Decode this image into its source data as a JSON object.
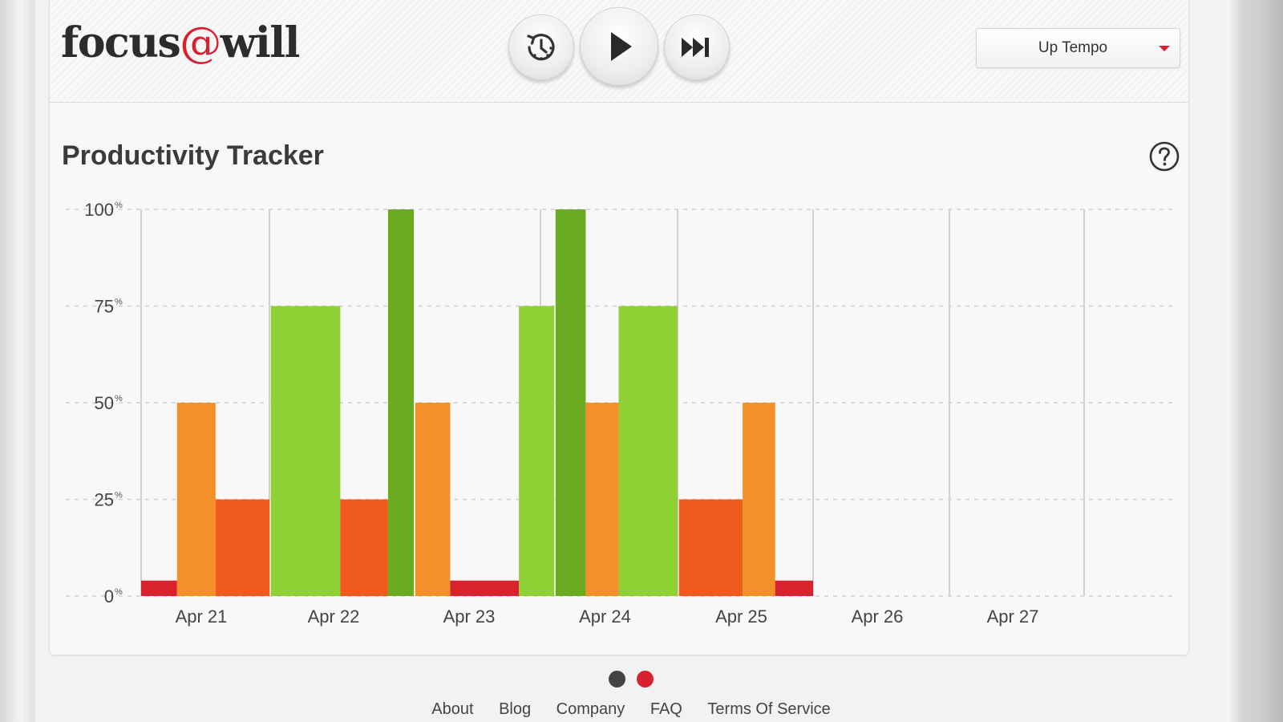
{
  "header": {
    "logo": {
      "left": "focus",
      "at": "@",
      "right": "will"
    },
    "controls": [
      {
        "name": "timer-button",
        "icon": "timer-icon"
      },
      {
        "name": "play-button",
        "icon": "play-icon"
      },
      {
        "name": "skip-button",
        "icon": "skip-forward-icon"
      }
    ],
    "channel_select": {
      "value": "Up Tempo",
      "icon": "caret-down-icon"
    }
  },
  "tracker": {
    "title": "Productivity Tracker",
    "help_icon": "help-circle-icon"
  },
  "chart_data": {
    "type": "bar",
    "title": "",
    "xlabel": "",
    "ylabel": "",
    "ylim": [
      0,
      100
    ],
    "y_ticks": [
      {
        "value": 100,
        "label": "100",
        "unit": "%"
      },
      {
        "value": 75,
        "label": "75",
        "unit": "%"
      },
      {
        "value": 50,
        "label": "50",
        "unit": "%"
      },
      {
        "value": 25,
        "label": "25",
        "unit": "%"
      },
      {
        "value": 0,
        "label": "0",
        "unit": "%"
      }
    ],
    "categories": [
      "Apr 21",
      "Apr 22",
      "Apr 23",
      "Apr 24",
      "Apr 25",
      "Apr 26",
      "Apr 27"
    ],
    "grid": true,
    "colors": {
      "very-low": "#d8232e",
      "low": "#f05a1c",
      "medium": "#f39028",
      "high": "#8fd035",
      "very-high": "#6aab21"
    },
    "sessions": [
      {
        "start": 0.0,
        "end": 0.28,
        "value": 4,
        "level": "very-low"
      },
      {
        "start": 0.28,
        "end": 0.58,
        "value": 50,
        "level": "medium"
      },
      {
        "start": 0.58,
        "end": 1.0,
        "value": 25,
        "level": "low"
      },
      {
        "start": 1.01,
        "end": 1.52,
        "value": 75,
        "level": "high"
      },
      {
        "start": 1.52,
        "end": 1.87,
        "value": 25,
        "level": "low"
      },
      {
        "start": 1.87,
        "end": 2.06,
        "value": 100,
        "level": "very-high"
      },
      {
        "start": 2.07,
        "end": 2.33,
        "value": 50,
        "level": "medium"
      },
      {
        "start": 2.33,
        "end": 2.84,
        "value": 4,
        "level": "very-low"
      },
      {
        "start": 2.84,
        "end": 3.1,
        "value": 75,
        "level": "high"
      },
      {
        "start": 3.11,
        "end": 3.33,
        "value": 100,
        "level": "very-high"
      },
      {
        "start": 3.33,
        "end": 3.57,
        "value": 50,
        "level": "medium"
      },
      {
        "start": 3.57,
        "end": 4.0,
        "value": 75,
        "level": "high"
      },
      {
        "start": 4.01,
        "end": 4.48,
        "value": 25,
        "level": "low"
      },
      {
        "start": 4.48,
        "end": 4.72,
        "value": 50,
        "level": "medium"
      },
      {
        "start": 4.72,
        "end": 5.0,
        "value": 4,
        "level": "very-low"
      }
    ]
  },
  "pager": {
    "dots": [
      {
        "active": false,
        "color": "#444444"
      },
      {
        "active": true,
        "color": "#d8202e"
      }
    ]
  },
  "footer": {
    "links": [
      "About",
      "Blog",
      "Company",
      "FAQ",
      "Terms Of Service"
    ]
  }
}
